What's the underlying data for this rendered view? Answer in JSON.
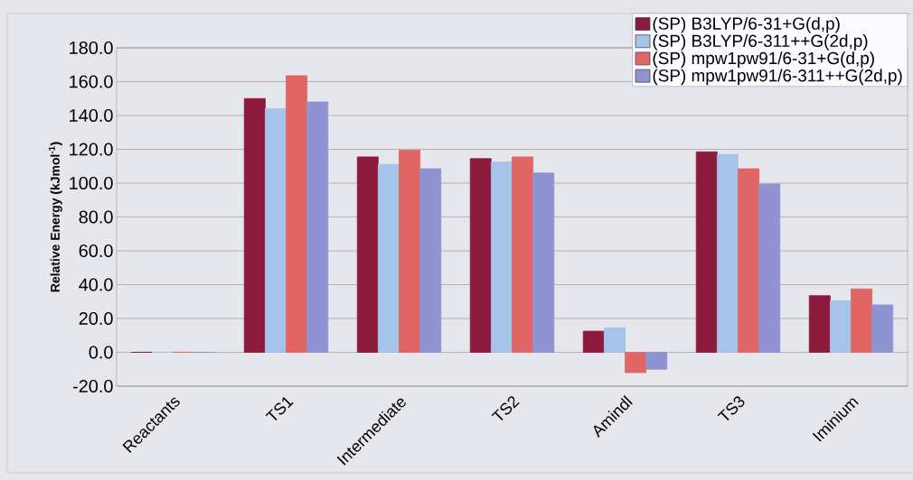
{
  "chart_data": {
    "type": "bar",
    "ylabel": "Relative Energy (kJmol$^{-1}$)",
    "categories": [
      "Reactants",
      "TS1",
      "Intermediate",
      "TS2",
      "Amindl",
      "TS3",
      "Iminium"
    ],
    "series": [
      {
        "name": "(SP) B3LYP/6-31+G(d,p)",
        "color": "#8b1a3c",
        "values": [
          0,
          150,
          115.5,
          114.5,
          12.5,
          118.5,
          33.5
        ]
      },
      {
        "name": "(SP) B3LYP/6-311++G(2d,p)",
        "color": "#a6c3ea",
        "values": [
          0,
          144,
          111,
          112.5,
          14.5,
          117,
          30.5
        ]
      },
      {
        "name": "(SP) mpw1pw91/6-31+G(d,p)",
        "color": "#e06666",
        "values": [
          0,
          163.5,
          119.5,
          115.5,
          -12,
          108.5,
          37.5
        ]
      },
      {
        "name": "(SP) mpw1pw91/6-311++G(2d,p)",
        "color": "#8f93d1",
        "values": [
          0,
          148,
          108.5,
          106,
          -10,
          99.5,
          28
        ]
      }
    ],
    "ylim": [
      -20,
      180
    ],
    "yticks": [
      {
        "value": -20,
        "label": "-20.0"
      },
      {
        "value": 0,
        "label": "0.0"
      },
      {
        "value": 20,
        "label": "20.0"
      },
      {
        "value": 40,
        "label": "40.0"
      },
      {
        "value": 60,
        "label": "60.0"
      },
      {
        "value": 80,
        "label": "80.0"
      },
      {
        "value": 100,
        "label": "100.0"
      },
      {
        "value": 120,
        "label": "120.0"
      },
      {
        "value": 140,
        "label": "140.0"
      },
      {
        "value": 160,
        "label": "160.0"
      },
      {
        "value": 180,
        "label": "180.0"
      }
    ],
    "grid": "y",
    "legend": "top right"
  }
}
